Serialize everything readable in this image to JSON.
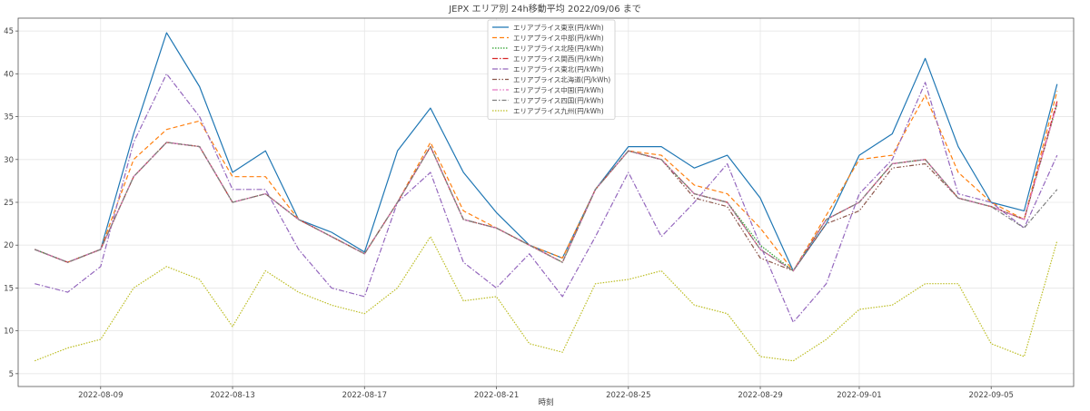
{
  "chart_data": {
    "type": "line",
    "title": "JEPX エリア別 24h移動平均 2022/09/06 まで",
    "xlabel": "時刻",
    "ylabel": "",
    "x_start": "2022-08-07",
    "x_end": "2022-09-06",
    "xlim": [
      "2022-08-06T12:00",
      "2022-09-07T12:00"
    ],
    "ylim": [
      3.5,
      46.5
    ],
    "x_ticks": [
      "2022-08-09",
      "2022-08-13",
      "2022-08-17",
      "2022-08-21",
      "2022-08-25",
      "2022-08-29",
      "2022-09-01",
      "2022-09-05"
    ],
    "y_ticks": [
      5,
      10,
      15,
      20,
      25,
      30,
      35,
      40,
      45
    ],
    "grid": true,
    "legend_position": "top-center",
    "series": [
      {
        "name": "エリアプライス東京(円/kWh)",
        "color": "#1f77b4",
        "dash": "",
        "values": [
          19.5,
          18.0,
          19.5,
          33.0,
          44.8,
          38.5,
          28.5,
          31.0,
          23.0,
          21.5,
          19.2,
          31.0,
          36.0,
          28.5,
          23.8,
          20.0,
          18.5,
          26.5,
          31.5,
          31.5,
          29.0,
          30.5,
          25.5,
          17.0,
          22.5,
          30.5,
          33.0,
          41.8,
          31.5,
          25.0,
          24.0,
          38.8
        ]
      },
      {
        "name": "エリアプライス中部(円/kWh)",
        "color": "#ff7f0e",
        "dash": "5,3",
        "values": [
          19.5,
          18.0,
          19.5,
          30.0,
          33.5,
          34.5,
          28.0,
          28.0,
          23.0,
          21.0,
          19.0,
          25.0,
          32.0,
          24.0,
          22.0,
          20.0,
          18.5,
          26.5,
          31.0,
          30.5,
          27.0,
          26.0,
          22.0,
          17.0,
          23.5,
          30.0,
          30.5,
          37.5,
          28.5,
          25.0,
          23.0,
          38.0
        ]
      },
      {
        "name": "エリアプライス北陸(円/kWh)",
        "color": "#2ca02c",
        "dash": "1.5,1.5",
        "values": [
          19.5,
          18.0,
          19.5,
          28.0,
          32.0,
          31.5,
          25.0,
          26.0,
          23.0,
          21.0,
          19.0,
          25.0,
          31.5,
          23.0,
          22.0,
          20.0,
          18.0,
          26.5,
          31.0,
          30.0,
          26.0,
          25.0,
          20.0,
          17.0,
          23.0,
          25.0,
          29.5,
          30.0,
          25.5,
          24.5,
          23.0,
          36.5
        ]
      },
      {
        "name": "エリアプライス関西(円/kWh)",
        "color": "#d62728",
        "dash": "6,2,1.5,2",
        "values": [
          19.5,
          18.0,
          19.5,
          28.0,
          32.0,
          31.5,
          25.0,
          26.0,
          23.0,
          21.0,
          19.0,
          25.0,
          31.5,
          23.0,
          22.0,
          20.0,
          18.0,
          26.5,
          31.0,
          30.0,
          26.0,
          25.0,
          19.5,
          17.0,
          23.0,
          25.0,
          29.5,
          30.0,
          25.5,
          24.5,
          23.0,
          36.8
        ]
      },
      {
        "name": "エリアプライス東北(円/kWh)",
        "color": "#9467bd",
        "dash": "6,2,1.5,2",
        "values": [
          15.5,
          14.5,
          17.5,
          32.0,
          40.0,
          35.0,
          26.5,
          26.5,
          19.5,
          15.0,
          14.0,
          25.0,
          28.5,
          18.0,
          15.0,
          19.0,
          14.0,
          21.0,
          28.5,
          21.0,
          25.0,
          29.5,
          20.0,
          11.0,
          15.5,
          26.0,
          30.0,
          39.0,
          26.0,
          25.0,
          22.0,
          30.5
        ]
      },
      {
        "name": "エリアプライス北海道(円/kWh)",
        "color": "#8c564b",
        "dash": "5,2,1.5,2,1.5,2",
        "values": [
          19.5,
          18.0,
          19.5,
          28.0,
          32.0,
          31.5,
          25.0,
          26.0,
          23.0,
          21.0,
          19.0,
          25.0,
          31.5,
          23.0,
          22.0,
          20.0,
          18.0,
          26.5,
          31.0,
          30.0,
          25.5,
          24.5,
          18.5,
          17.0,
          22.5,
          24.0,
          29.0,
          29.5,
          25.5,
          24.5,
          23.0,
          36.5
        ]
      },
      {
        "name": "エリアプライス中国(円/kWh)",
        "color": "#e377c2",
        "dash": "6,2,1.5,2,1.5,2",
        "values": [
          19.5,
          18.0,
          19.5,
          28.0,
          32.0,
          31.5,
          25.0,
          26.0,
          23.0,
          21.0,
          19.0,
          25.0,
          31.5,
          23.0,
          22.0,
          20.0,
          18.0,
          26.5,
          31.0,
          30.0,
          26.0,
          25.0,
          19.5,
          17.0,
          23.0,
          25.0,
          29.5,
          30.0,
          25.5,
          24.5,
          23.0,
          36.5
        ]
      },
      {
        "name": "エリアプライス四国(円/kWh)",
        "color": "#7f7f7f",
        "dash": "5,2,1.5,2",
        "values": [
          19.5,
          18.0,
          19.5,
          28.0,
          32.0,
          31.5,
          25.0,
          26.0,
          23.0,
          21.0,
          19.0,
          25.0,
          31.5,
          23.0,
          22.0,
          20.0,
          18.0,
          26.5,
          31.0,
          30.0,
          26.0,
          25.0,
          19.5,
          17.0,
          23.0,
          25.0,
          29.5,
          30.0,
          25.5,
          24.5,
          22.0,
          26.5
        ]
      },
      {
        "name": "エリアプライス九州(円/kWh)",
        "color": "#bcbd22",
        "dash": "1.5,1.5",
        "values": [
          6.5,
          8.0,
          9.0,
          15.0,
          17.5,
          16.0,
          10.5,
          17.0,
          14.5,
          13.0,
          12.0,
          15.0,
          21.0,
          13.5,
          14.0,
          8.5,
          7.5,
          15.5,
          16.0,
          17.0,
          13.0,
          12.0,
          7.0,
          6.5,
          9.0,
          12.5,
          13.0,
          15.5,
          15.5,
          8.5,
          7.0,
          20.5
        ]
      }
    ]
  }
}
